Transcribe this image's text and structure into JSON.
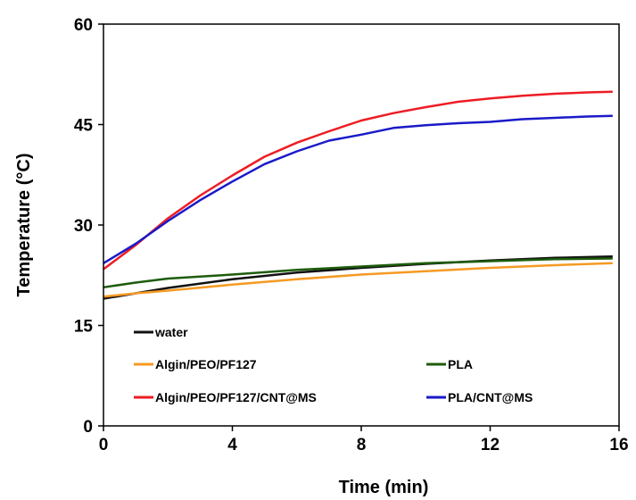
{
  "chart_data": {
    "type": "line",
    "title": "",
    "xlabel": "Time (min)",
    "ylabel": "Temperature (°C)",
    "xlim": [
      0,
      16
    ],
    "ylim": [
      0,
      60
    ],
    "xticks": [
      "0",
      "4",
      "8",
      "12",
      "16"
    ],
    "yticks": [
      "0",
      "15",
      "30",
      "45",
      "60"
    ],
    "grid": false,
    "legend_position": "bottom, inside plot",
    "series": [
      {
        "name": "water",
        "color": "#111111",
        "x": [
          0,
          1,
          2,
          4,
          6,
          8,
          10,
          12,
          14,
          15.8
        ],
        "y": [
          19.0,
          19.8,
          20.6,
          21.9,
          22.9,
          23.6,
          24.2,
          24.7,
          25.1,
          25.3
        ]
      },
      {
        "name": "Algin/PEO/PF127",
        "color": "#f59a23",
        "x": [
          0,
          1,
          2,
          4,
          6,
          8,
          10,
          12,
          14,
          15.8
        ],
        "y": [
          19.3,
          19.8,
          20.2,
          21.1,
          21.9,
          22.6,
          23.1,
          23.6,
          24.0,
          24.3
        ]
      },
      {
        "name": "PLA",
        "color": "#1d5c0c",
        "x": [
          0,
          1,
          2,
          4,
          6,
          8,
          10,
          12,
          14,
          15.8
        ],
        "y": [
          20.7,
          21.4,
          22.0,
          22.6,
          23.3,
          23.8,
          24.3,
          24.6,
          24.9,
          25.0
        ]
      },
      {
        "name": "Algin/PEO/PF127/CNT@MS",
        "color": "#ee1c24",
        "x": [
          0,
          1,
          2,
          3,
          4,
          5,
          6,
          7,
          8,
          9,
          10,
          11,
          12,
          13,
          14,
          15,
          15.8
        ],
        "y": [
          23.4,
          27.0,
          31.0,
          34.4,
          37.4,
          40.2,
          42.3,
          44.0,
          45.6,
          46.7,
          47.6,
          48.4,
          48.9,
          49.3,
          49.6,
          49.8,
          49.9
        ]
      },
      {
        "name": "PLA/CNT@MS",
        "color": "#1a1ac8",
        "x": [
          0,
          1,
          2,
          3,
          4,
          5,
          6,
          7,
          8,
          9,
          10,
          11,
          12,
          13,
          14,
          15,
          15.8
        ],
        "y": [
          24.3,
          27.2,
          30.6,
          33.7,
          36.5,
          39.1,
          41.0,
          42.6,
          43.5,
          44.5,
          44.9,
          45.2,
          45.4,
          45.8,
          46.0,
          46.2,
          46.3
        ]
      }
    ]
  }
}
